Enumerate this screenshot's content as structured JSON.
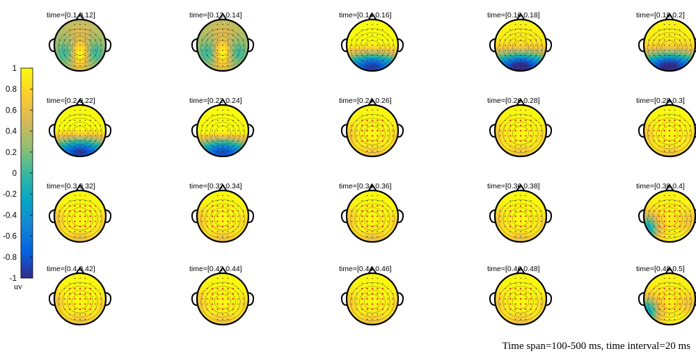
{
  "chart_data": {
    "type": "heatmap",
    "subtype": "eeg-topographic-map-grid",
    "rows": 4,
    "cols": 5,
    "colormap": "parula",
    "clim": [
      -1,
      1
    ],
    "colorbar": {
      "ticks": [
        "1",
        "0.8",
        "0.6",
        "0.4",
        "0.2",
        "0",
        "-0.2",
        "-0.4",
        "-0.6",
        "-0.8",
        "-1"
      ],
      "unit": "uv",
      "placement": "left"
    },
    "maps": [
      {
        "label": "time=[0.1 0.12]",
        "pattern": "central-positive-peak",
        "mean": 0.45,
        "sig": 0
      },
      {
        "label": "time=[0.12 0.14]",
        "pattern": "central-positive-peak",
        "mean": 0.55,
        "sig": 0
      },
      {
        "label": "time=[0.14 0.16]",
        "pattern": "posterior-negative",
        "mean": 0.35,
        "sig": 0
      },
      {
        "label": "time=[0.16 0.18]",
        "pattern": "posterior-negative",
        "mean": 0.2,
        "sig": 0
      },
      {
        "label": "time=[0.18 0.2]",
        "pattern": "posterior-negative",
        "mean": 0.2,
        "sig": 0
      },
      {
        "label": "time=[0.2 0.22]",
        "pattern": "posterior-negative",
        "mean": 0.35,
        "sig": 0
      },
      {
        "label": "time=[0.22 0.24]",
        "pattern": "posterior-negative",
        "mean": 0.45,
        "sig": 0
      },
      {
        "label": "time=[0.24 0.26]",
        "pattern": "widespread-positive",
        "mean": 0.85,
        "sig": 1
      },
      {
        "label": "time=[0.26 0.28]",
        "pattern": "widespread-positive",
        "mean": 0.9,
        "sig": 1
      },
      {
        "label": "time=[0.28 0.3]",
        "pattern": "widespread-positive",
        "mean": 0.9,
        "sig": 1
      },
      {
        "label": "time=[0.3 0.32]",
        "pattern": "widespread-positive",
        "mean": 0.85,
        "sig": 1
      },
      {
        "label": "time=[0.32 0.34]",
        "pattern": "widespread-positive",
        "mean": 0.85,
        "sig": 1
      },
      {
        "label": "time=[0.34 0.36]",
        "pattern": "widespread-positive",
        "mean": 0.85,
        "sig": 1
      },
      {
        "label": "time=[0.36 0.38]",
        "pattern": "widespread-positive",
        "mean": 0.85,
        "sig": 1
      },
      {
        "label": "time=[0.38 0.4]",
        "pattern": "left-lateral-dip",
        "mean": 0.8,
        "sig": 1
      },
      {
        "label": "time=[0.4 0.42]",
        "pattern": "widespread-positive",
        "mean": 0.9,
        "sig": 1
      },
      {
        "label": "time=[0.42 0.44]",
        "pattern": "widespread-positive",
        "mean": 0.9,
        "sig": 1
      },
      {
        "label": "time=[0.44 0.46]",
        "pattern": "widespread-positive",
        "mean": 0.9,
        "sig": 1
      },
      {
        "label": "time=[0.46 0.48]",
        "pattern": "widespread-positive",
        "mean": 0.9,
        "sig": 1
      },
      {
        "label": "time=[0.48 0.5]",
        "pattern": "left-lateral-dip",
        "mean": 0.75,
        "sig": 1
      }
    ]
  },
  "caption": "Time span=100-500 ms, time interval=20 ms"
}
